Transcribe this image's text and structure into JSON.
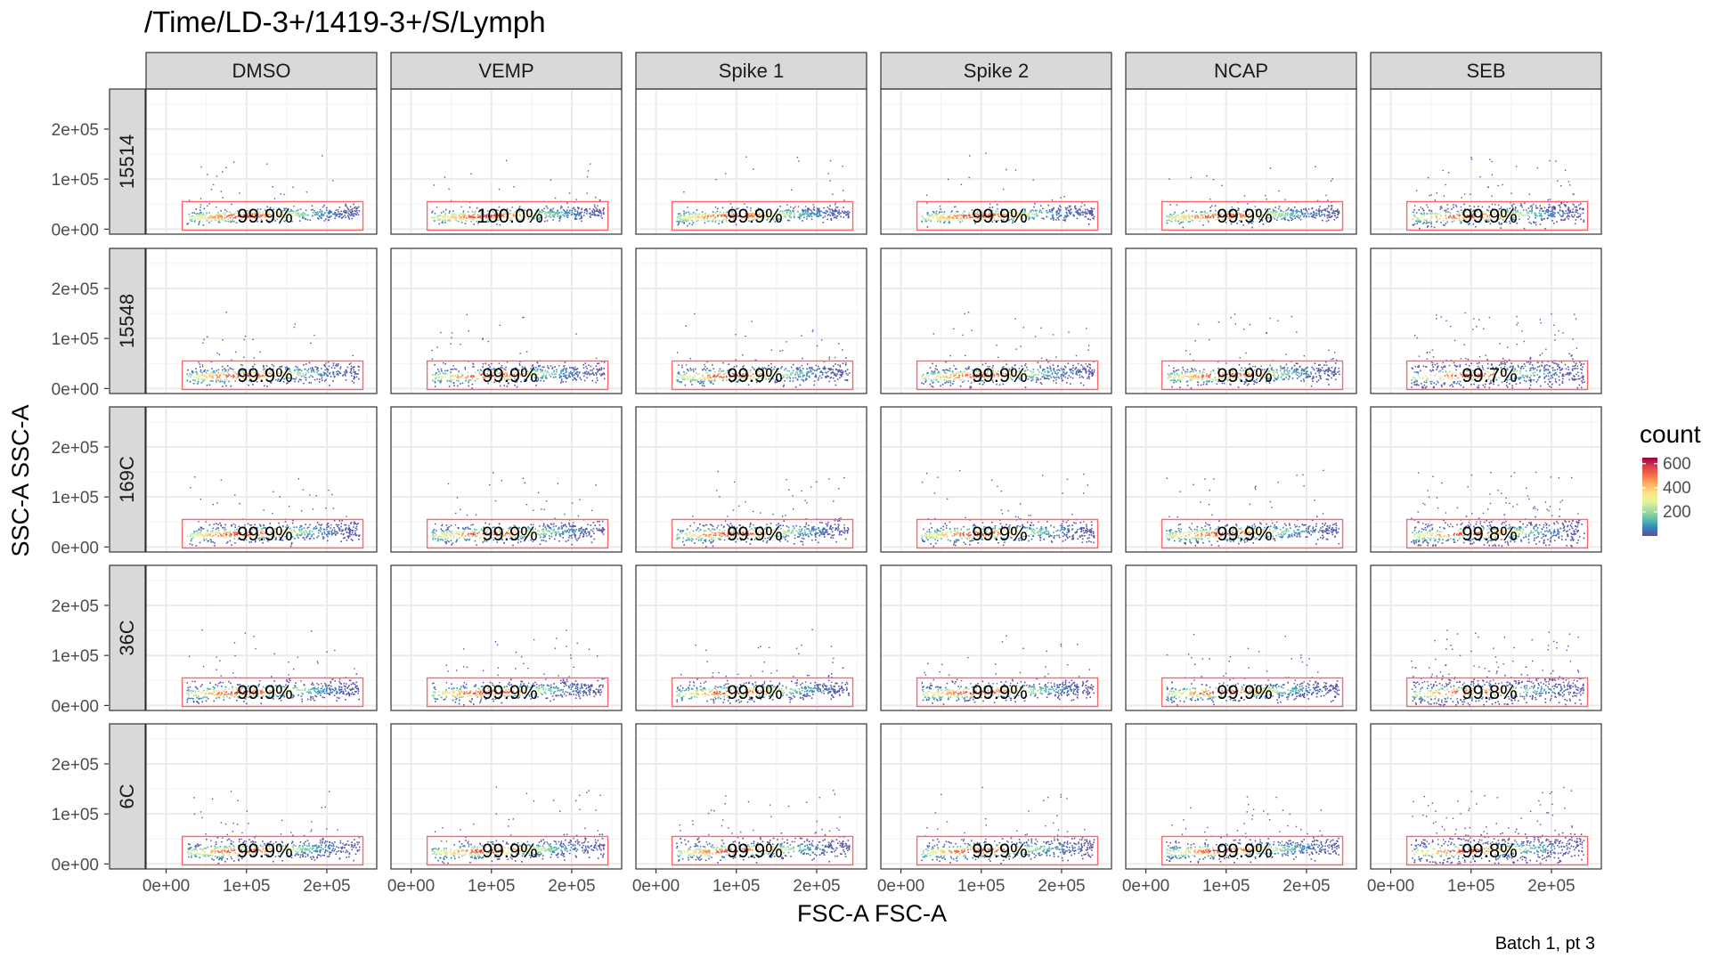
{
  "chart_data": {
    "type": "scatter",
    "title": "/Time/LD-3+/1419-3+/S/Lymph",
    "xlabel": "FSC-A FSC-A",
    "ylabel": "SSC-A SSC-A",
    "caption": "Batch 1, pt 3",
    "x_ticks": [
      "0e+00",
      "1e+05",
      "2e+05"
    ],
    "x_tick_values": [
      0,
      100000,
      200000
    ],
    "y_ticks": [
      "0e+00",
      "1e+05",
      "2e+05"
    ],
    "y_tick_values": [
      0,
      100000,
      200000
    ],
    "xlim": [
      -25000,
      262143
    ],
    "ylim": [
      -10000,
      280000
    ],
    "grid": true,
    "columns": [
      "DMSO",
      "VEMP",
      "Spike 1",
      "Spike 2",
      "NCAP",
      "SEB"
    ],
    "rows": [
      "15514",
      "15548",
      "169C",
      "36C",
      "6C"
    ],
    "gate": {
      "x": [
        20000,
        245000
      ],
      "y": [
        -2000,
        55000
      ],
      "color": "#f8696b"
    },
    "percentages": [
      [
        "99.9%",
        "100.0%",
        "99.9%",
        "99.9%",
        "99.9%",
        "99.9%"
      ],
      [
        "99.9%",
        "99.9%",
        "99.9%",
        "99.9%",
        "99.9%",
        "99.7%"
      ],
      [
        "99.9%",
        "99.9%",
        "99.9%",
        "99.9%",
        "99.9%",
        "99.8%"
      ],
      [
        "99.9%",
        "99.9%",
        "99.9%",
        "99.9%",
        "99.9%",
        "99.8%"
      ],
      [
        "99.9%",
        "99.9%",
        "99.9%",
        "99.9%",
        "99.9%",
        "99.8%"
      ]
    ],
    "legend": {
      "title": "count",
      "ticks": [
        "600",
        "400",
        "200"
      ],
      "tick_values": [
        600,
        400,
        200
      ],
      "range": [
        0,
        650
      ],
      "placement": "right",
      "colors": [
        "#5e4fa2",
        "#3288bd",
        "#66c2a5",
        "#abdda4",
        "#e6f598",
        "#fee08b",
        "#fdae61",
        "#f46d43",
        "#d53e4f",
        "#9e0142"
      ]
    }
  }
}
